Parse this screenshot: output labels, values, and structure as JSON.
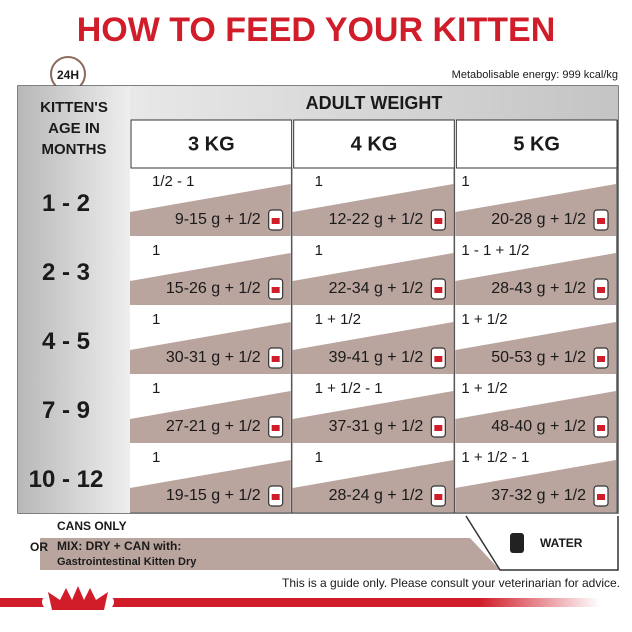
{
  "header": {
    "title": "HOW TO FEED YOUR KITTEN",
    "clock_label": "24H",
    "energy": "Metabolisable energy: 999 kcal/kg"
  },
  "table": {
    "age_header": [
      "KITTEN'S",
      "AGE IN",
      "MONTHS"
    ],
    "weight_header": "ADULT WEIGHT",
    "weights": [
      "3 KG",
      "4 KG",
      "5 KG"
    ],
    "rows": [
      {
        "age": "1 - 2",
        "cells": [
          {
            "cans": "1/2 - 1",
            "mix": "9-15 g + 1/2"
          },
          {
            "cans": "1",
            "mix": "12-22 g + 1/2"
          },
          {
            "cans": "1",
            "mix": "20-28 g + 1/2"
          }
        ]
      },
      {
        "age": "2 - 3",
        "cells": [
          {
            "cans": "1",
            "mix": "15-26 g + 1/2"
          },
          {
            "cans": "1",
            "mix": "22-34 g + 1/2"
          },
          {
            "cans": "1 - 1 + 1/2",
            "mix": "28-43 g + 1/2"
          }
        ]
      },
      {
        "age": "4 - 5",
        "cells": [
          {
            "cans": "1",
            "mix": "30-31 g + 1/2"
          },
          {
            "cans": "1 + 1/2",
            "mix": "39-41 g + 1/2"
          },
          {
            "cans": "1 + 1/2",
            "mix": "50-53 g + 1/2"
          }
        ]
      },
      {
        "age": "7 - 9",
        "cells": [
          {
            "cans": "1",
            "mix": "27-21 g + 1/2"
          },
          {
            "cans": "1 + 1/2 - 1",
            "mix": "37-31 g + 1/2"
          },
          {
            "cans": "1 + 1/2",
            "mix": "48-40 g + 1/2"
          }
        ]
      },
      {
        "age": "10 - 12",
        "cells": [
          {
            "cans": "1",
            "mix": "19-15 g + 1/2"
          },
          {
            "cans": "1",
            "mix": "28-24 g + 1/2"
          },
          {
            "cans": "1 + 1/2 - 1",
            "mix": "37-32 g + 1/2"
          }
        ]
      }
    ]
  },
  "legend": {
    "cans_only": "CANS ONLY",
    "or": "OR",
    "mix": "MIX: DRY + CAN with:",
    "product": "Gastrointestinal Kitten Dry",
    "water": "WATER"
  },
  "footer": {
    "disclaimer": "This is a guide only. Please consult your veterinarian for advice."
  }
}
